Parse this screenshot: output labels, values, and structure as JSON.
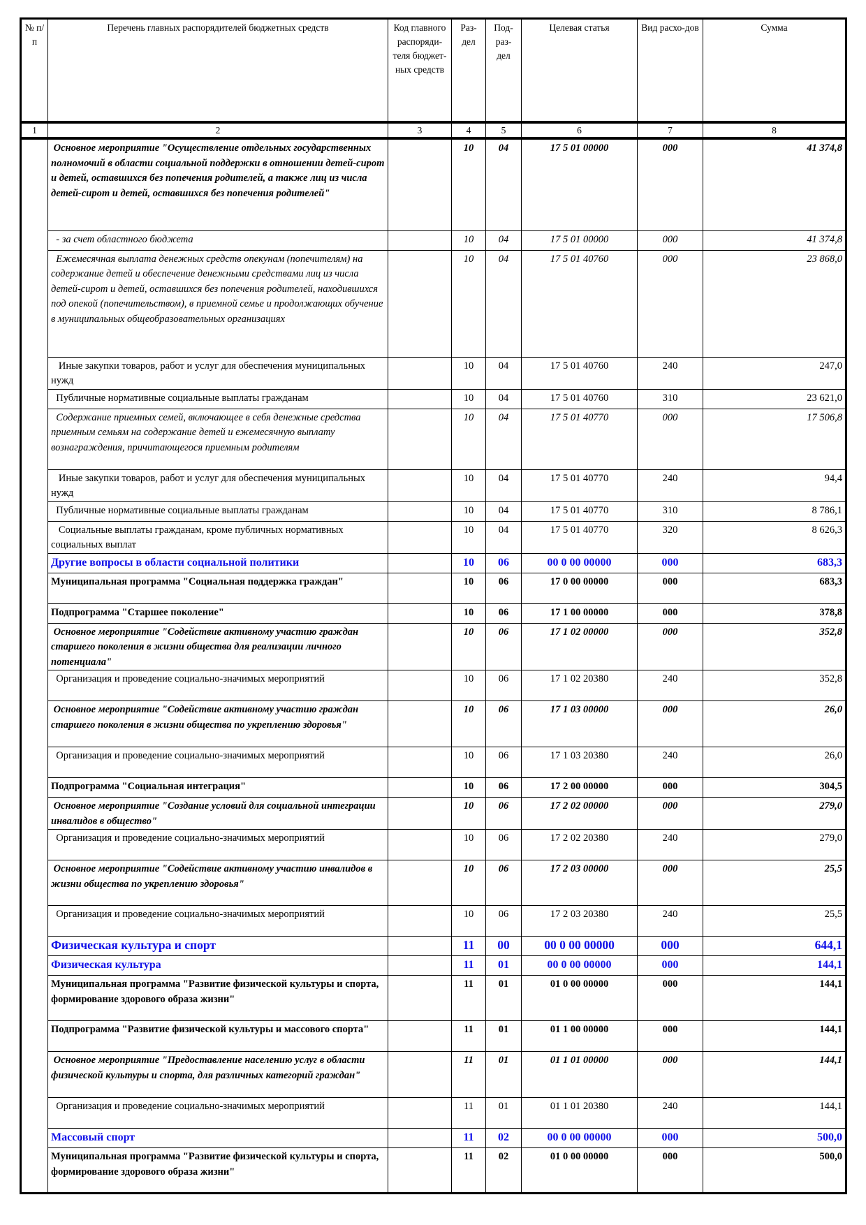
{
  "header": {
    "col1": "№ п/п",
    "col2": "Перечень главных распорядителей бюджетных средств",
    "col3": "Код главного распоряди-теля бюджет-ных средств",
    "col4": "Раз-дел",
    "col5": "Под-раз-дел",
    "col6": "Целевая статья",
    "col7": "Вид расхо-дов",
    "col8": "Сумма"
  },
  "column_numbers": [
    "1",
    "2",
    "3",
    "4",
    "5",
    "6",
    "7",
    "8"
  ],
  "rows": [
    {
      "style": "bi",
      "desc": " Основное мероприятие \"Осуществление отдельных государственных полномочий в области социальной поддержки в отношении детей-сирот и детей, оставшихся без попечения родителей, а также лиц из числа детей-сирот и детей, оставшихся без попечения родителей\"",
      "code": "",
      "razdel": "10",
      "podrazdel": "04",
      "cs": "17 5 01 00000",
      "vr": "000",
      "sum": "41 374,8"
    },
    {
      "style": "i",
      "desc": "  - за счет областного бюджета",
      "code": "",
      "razdel": "10",
      "podrazdel": "04",
      "cs": "17 5 01 00000",
      "vr": "000",
      "sum": "41 374,8"
    },
    {
      "style": "i",
      "desc": "  Ежемесячная выплата денежных средств опекунам (попечителям) на содержание детей и обеспечение денежными средствами лиц из числа детей-сирот и детей, оставшихся без попечения родителей, находившихся под опекой (попечительством), в приемной семье и продолжающих обучение в муниципальных общеобразовательных организациях",
      "code": "",
      "razdel": "10",
      "podrazdel": "04",
      "cs": "17 5 01 40760",
      "vr": "000",
      "sum": "23 868,0"
    },
    {
      "style": "n",
      "desc": "   Иные закупки товаров, работ и услуг для обеспечения муниципальных нужд",
      "code": "",
      "razdel": "10",
      "podrazdel": "04",
      "cs": "17 5 01 40760",
      "vr": "240",
      "sum": "247,0"
    },
    {
      "style": "n",
      "desc": "  Публичные нормативные социальные выплаты гражданам",
      "code": "",
      "razdel": "10",
      "podrazdel": "04",
      "cs": "17 5 01 40760",
      "vr": "310",
      "sum": "23 621,0"
    },
    {
      "style": "i",
      "desc": "  Содержание приемных семей, включающее в себя денежные средства приемным семьям на содержание детей и ежемесячную выплату вознаграждения, причитающегося приемным родителям",
      "code": "",
      "razdel": "10",
      "podrazdel": "04",
      "cs": "17 5 01 40770",
      "vr": "000",
      "sum": "17 506,8"
    },
    {
      "style": "n",
      "desc": "   Иные закупки товаров, работ и услуг для обеспечения муниципальных нужд",
      "code": "",
      "razdel": "10",
      "podrazdel": "04",
      "cs": "17 5 01 40770",
      "vr": "240",
      "sum": "94,4"
    },
    {
      "style": "n",
      "desc": "  Публичные нормативные социальные выплаты гражданам",
      "code": "",
      "razdel": "10",
      "podrazdel": "04",
      "cs": "17 5 01 40770",
      "vr": "310",
      "sum": "8 786,1"
    },
    {
      "style": "n",
      "desc": "   Социальные выплаты гражданам, кроме публичных нормативных социальных выплат",
      "code": "",
      "razdel": "10",
      "podrazdel": "04",
      "cs": "17 5 01 40770",
      "vr": "320",
      "sum": "8 626,3"
    },
    {
      "style": "blue",
      "desc": "Другие вопросы в области социальной политики",
      "code": "",
      "razdel": "10",
      "podrazdel": "06",
      "cs": "00 0 00 00000",
      "vr": "000",
      "sum": "683,3"
    },
    {
      "style": "b",
      "desc": "Муниципальная программа \"Социальная поддержка граждан\"",
      "code": "",
      "razdel": "10",
      "podrazdel": "06",
      "cs": "17 0 00 00000",
      "vr": "000",
      "sum": "683,3"
    },
    {
      "style": "b",
      "desc": "Подпрограмма \"Старшее поколение\"",
      "code": "",
      "razdel": "10",
      "podrazdel": "06",
      "cs": "17 1 00 00000",
      "vr": "000",
      "sum": "378,8"
    },
    {
      "style": "bi",
      "desc": " Основное мероприятие \"Содействие активному участию граждан старшего поколения в жизни общества для реализации личного потенциала\"",
      "code": "",
      "razdel": "10",
      "podrazdel": "06",
      "cs": "17 1 02 00000",
      "vr": "000",
      "sum": "352,8"
    },
    {
      "style": "n",
      "desc": "  Организация и проведение социально-значимых мероприятий",
      "code": "",
      "razdel": "10",
      "podrazdel": "06",
      "cs": "17 1 02 20380",
      "vr": "240",
      "sum": "352,8"
    },
    {
      "style": "bi",
      "desc": " Основное мероприятие \"Содействие активному участию граждан старшего поколения в жизни общества по укреплению здоровья\"",
      "code": "",
      "razdel": "10",
      "podrazdel": "06",
      "cs": "17 1 03 00000",
      "vr": "000",
      "sum": "26,0"
    },
    {
      "style": "n",
      "desc": "  Организация и проведение социально-значимых мероприятий",
      "code": "",
      "razdel": "10",
      "podrazdel": "06",
      "cs": "17 1 03 20380",
      "vr": "240",
      "sum": "26,0"
    },
    {
      "style": "b",
      "desc": "Подпрограмма \"Социальная интеграция\"",
      "code": "",
      "razdel": "10",
      "podrazdel": "06",
      "cs": "17 2 00 00000",
      "vr": "000",
      "sum": "304,5"
    },
    {
      "style": "bi",
      "desc": " Основное мероприятие \"Создание условий для социальной интеграции инвалидов в общество\"",
      "code": "",
      "razdel": "10",
      "podrazdel": "06",
      "cs": "17 2 02 00000",
      "vr": "000",
      "sum": "279,0"
    },
    {
      "style": "n",
      "desc": "  Организация и проведение социально-значимых мероприятий",
      "code": "",
      "razdel": "10",
      "podrazdel": "06",
      "cs": "17 2 02 20380",
      "vr": "240",
      "sum": "279,0"
    },
    {
      "style": "bi",
      "desc": " Основное мероприятие \"Содействие активному участию инвалидов в жизни общества по укреплению здоровья\"",
      "code": "",
      "razdel": "10",
      "podrazdel": "06",
      "cs": "17 2 03 00000",
      "vr": "000",
      "sum": "25,5"
    },
    {
      "style": "n",
      "desc": "  Организация и проведение социально-значимых мероприятий",
      "code": "",
      "razdel": "10",
      "podrazdel": "06",
      "cs": "17 2 03 20380",
      "vr": "240",
      "sum": "25,5"
    },
    {
      "style": "bluel",
      "desc": "Физическая культура и спорт",
      "code": "",
      "razdel": "11",
      "podrazdel": "00",
      "cs": "00 0 00 00000",
      "vr": "000",
      "sum": "644,1"
    },
    {
      "style": "blue",
      "desc": "Физическая культура",
      "code": "",
      "razdel": "11",
      "podrazdel": "01",
      "cs": "00 0 00 00000",
      "vr": "000",
      "sum": "144,1"
    },
    {
      "style": "b",
      "desc": "Муниципальная программа \"Развитие физической культуры и спорта, формирование здорового образа жизни\"",
      "code": "",
      "razdel": "11",
      "podrazdel": "01",
      "cs": "01 0 00 00000",
      "vr": "000",
      "sum": "144,1"
    },
    {
      "style": "b",
      "desc": "Подпрограмма \"Развитие физической культуры и массового спорта\"",
      "code": "",
      "razdel": "11",
      "podrazdel": "01",
      "cs": "01 1 00 00000",
      "vr": "000",
      "sum": "144,1"
    },
    {
      "style": "bi",
      "desc": " Основное мероприятие \"Предоставление населению услуг в области физической культуры и спорта, для различных категорий граждан\"",
      "code": "",
      "razdel": "11",
      "podrazdel": "01",
      "cs": "01 1 01 00000",
      "vr": "000",
      "sum": "144,1"
    },
    {
      "style": "n",
      "desc": "  Организация и проведение социально-значимых мероприятий",
      "code": "",
      "razdel": "11",
      "podrazdel": "01",
      "cs": "01 1 01 20380",
      "vr": "240",
      "sum": "144,1"
    },
    {
      "style": "blue",
      "desc": "Массовый спорт",
      "code": "",
      "razdel": "11",
      "podrazdel": "02",
      "cs": "00 0 00 00000",
      "vr": "000",
      "sum": "500,0"
    },
    {
      "style": "b",
      "desc": "Муниципальная программа \"Развитие физической культуры и спорта, формирование здорового образа жизни\"",
      "code": "",
      "razdel": "11",
      "podrazdel": "02",
      "cs": "01 0 00 00000",
      "vr": "000",
      "sum": "500,0"
    }
  ]
}
